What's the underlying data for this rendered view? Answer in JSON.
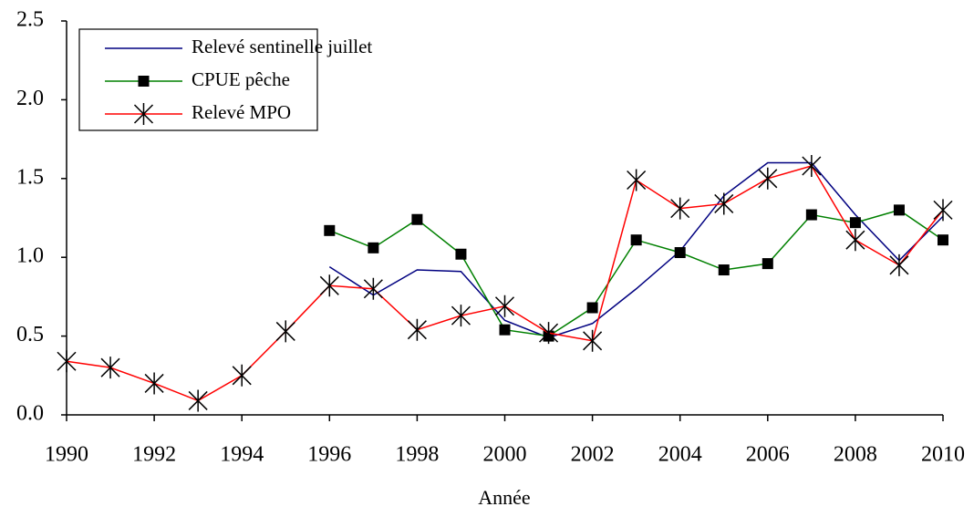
{
  "chart_data": {
    "type": "line",
    "x_label": "Année",
    "x": [
      1990,
      1991,
      1992,
      1993,
      1994,
      1995,
      1996,
      1997,
      1998,
      1999,
      2000,
      2001,
      2002,
      2003,
      2004,
      2005,
      2006,
      2007,
      2008,
      2009,
      2010
    ],
    "series": [
      {
        "name": "Relevé sentinelle juillet",
        "color": "#000080",
        "marker": null,
        "values": [
          null,
          null,
          null,
          null,
          null,
          null,
          0.94,
          0.76,
          0.92,
          0.91,
          0.6,
          0.49,
          0.58,
          0.8,
          1.04,
          1.39,
          1.6,
          1.6,
          1.27,
          0.98,
          1.26
        ]
      },
      {
        "name": "CPUE pêche",
        "color": "#008000",
        "marker": "square",
        "marker_color": "#000000",
        "values": [
          null,
          null,
          null,
          null,
          null,
          null,
          1.17,
          1.06,
          1.24,
          1.02,
          0.54,
          0.5,
          0.68,
          1.11,
          1.03,
          0.92,
          0.96,
          1.27,
          1.22,
          1.3,
          1.11
        ]
      },
      {
        "name": "Relevé MPO",
        "color": "#ff0000",
        "marker": "asterisk",
        "marker_color": "#000000",
        "values": [
          0.34,
          0.3,
          0.2,
          0.09,
          0.25,
          0.53,
          0.82,
          0.8,
          0.54,
          0.63,
          0.69,
          0.52,
          0.47,
          1.49,
          1.31,
          1.34,
          1.5,
          1.58,
          1.11,
          0.95,
          1.3
        ]
      }
    ],
    "xlim": [
      1990,
      2010
    ],
    "xticks": [
      1990,
      1992,
      1994,
      1996,
      1998,
      2000,
      2002,
      2004,
      2006,
      2008,
      2010
    ],
    "ylim": [
      0,
      2.5
    ],
    "yticks": [
      {
        "value": 0,
        "label": "0.0"
      },
      {
        "value": 0.5,
        "label": "0.5"
      },
      {
        "value": 1,
        "label": "1.0"
      },
      {
        "value": 1.5,
        "label": "1.5"
      },
      {
        "value": 2,
        "label": "2.0"
      },
      {
        "value": 2.5,
        "label": "2.5"
      }
    ],
    "grid": false,
    "legend": "upper left"
  }
}
